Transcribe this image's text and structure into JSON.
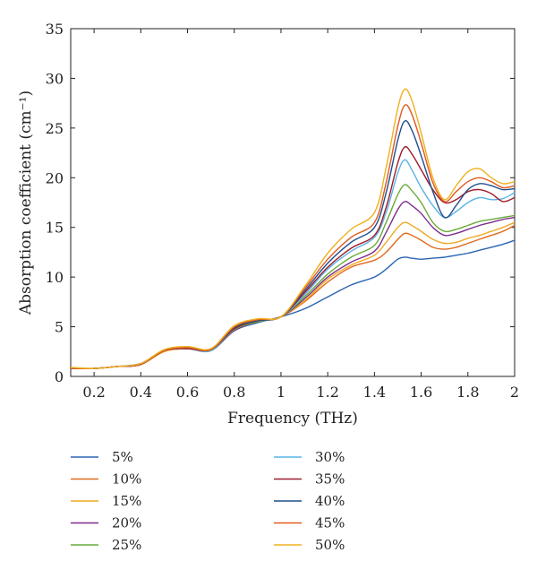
{
  "chart_data": {
    "type": "line",
    "xlabel": "Frequency (THz)",
    "ylabel": "Absorption coefficient (cm⁻¹)",
    "xlim": [
      0.1,
      2.0
    ],
    "ylim": [
      0,
      35
    ],
    "xticks": [
      0.2,
      0.4,
      0.6,
      0.8,
      1,
      1.2,
      1.4,
      1.6,
      1.8,
      2
    ],
    "xtick_labels": [
      "0.2",
      "0.4",
      "0.6",
      "0.8",
      "1",
      "1.2",
      "1.4",
      "1.6",
      "1.8",
      "2"
    ],
    "yticks": [
      0,
      5,
      10,
      15,
      20,
      25,
      30,
      35
    ],
    "ytick_labels": [
      "0",
      "5",
      "10",
      "15",
      "20",
      "25",
      "30",
      "35"
    ],
    "grid": false,
    "legend_position": "below plot, two columns",
    "x": [
      0.1,
      0.2,
      0.3,
      0.4,
      0.5,
      0.6,
      0.7,
      0.8,
      0.9,
      1.0,
      1.1,
      1.2,
      1.3,
      1.4,
      1.45,
      1.5,
      1.53,
      1.56,
      1.6,
      1.65,
      1.7,
      1.75,
      1.8,
      1.85,
      1.9,
      1.95,
      2.0
    ],
    "series": [
      {
        "name": "5%",
        "color": "#2a64b4",
        "values": [
          0.8,
          0.8,
          1.0,
          1.3,
          2.6,
          2.9,
          2.6,
          4.6,
          5.4,
          6.0,
          6.8,
          8.0,
          9.2,
          10.0,
          10.8,
          11.8,
          12.0,
          11.9,
          11.8,
          11.9,
          12.0,
          12.2,
          12.4,
          12.7,
          13.0,
          13.3,
          13.7
        ]
      },
      {
        "name": "10%",
        "color": "#e06a1c",
        "values": [
          0.8,
          0.8,
          1.0,
          1.2,
          2.5,
          2.8,
          2.6,
          4.7,
          5.5,
          6.0,
          7.5,
          9.5,
          11.0,
          11.7,
          12.5,
          13.8,
          14.4,
          14.2,
          13.7,
          13.0,
          12.8,
          13.0,
          13.4,
          13.8,
          14.2,
          14.6,
          15.2
        ]
      },
      {
        "name": "15%",
        "color": "#f0a820",
        "values": [
          0.9,
          0.8,
          1.0,
          1.2,
          2.5,
          2.8,
          2.6,
          4.7,
          5.5,
          6.0,
          7.6,
          9.8,
          11.2,
          12.2,
          13.5,
          15.0,
          15.5,
          15.2,
          14.6,
          13.8,
          13.4,
          13.5,
          13.9,
          14.2,
          14.6,
          15.0,
          15.5
        ]
      },
      {
        "name": "20%",
        "color": "#7b2e8e",
        "values": [
          0.8,
          0.8,
          1.0,
          1.2,
          2.6,
          2.8,
          2.6,
          4.6,
          5.5,
          6.0,
          7.8,
          10.0,
          11.5,
          12.6,
          14.5,
          16.8,
          17.6,
          17.2,
          16.4,
          15.0,
          14.2,
          14.4,
          14.8,
          15.2,
          15.5,
          15.8,
          16.0
        ]
      },
      {
        "name": "25%",
        "color": "#6aaa3a",
        "values": [
          0.8,
          0.8,
          1.0,
          1.2,
          2.6,
          2.8,
          2.6,
          4.7,
          5.5,
          6.0,
          8.0,
          10.3,
          12.0,
          13.2,
          15.5,
          18.3,
          19.3,
          18.7,
          17.5,
          15.5,
          14.6,
          14.8,
          15.2,
          15.6,
          15.8,
          16.0,
          16.2
        ]
      },
      {
        "name": "30%",
        "color": "#5ab4e6",
        "values": [
          0.8,
          0.8,
          1.0,
          1.2,
          2.6,
          2.8,
          2.6,
          4.8,
          5.6,
          6.0,
          8.2,
          10.8,
          12.6,
          14.0,
          16.5,
          20.5,
          21.8,
          20.8,
          19.0,
          17.2,
          16.0,
          16.6,
          17.5,
          18.0,
          17.8,
          17.9,
          18.5
        ]
      },
      {
        "name": "35%",
        "color": "#a01c2c",
        "values": [
          0.8,
          0.8,
          1.0,
          1.2,
          2.6,
          2.8,
          2.7,
          4.8,
          5.6,
          6.0,
          8.4,
          11.0,
          12.9,
          14.2,
          17.0,
          21.5,
          23.1,
          22.4,
          20.8,
          18.8,
          17.5,
          17.8,
          18.6,
          18.8,
          18.4,
          17.6,
          18.0
        ]
      },
      {
        "name": "40%",
        "color": "#1f4e8c",
        "values": [
          0.8,
          0.8,
          1.0,
          1.2,
          2.6,
          2.9,
          2.7,
          4.9,
          5.6,
          6.0,
          8.6,
          11.4,
          13.5,
          15.0,
          18.5,
          23.8,
          25.7,
          24.8,
          22.2,
          18.6,
          16.0,
          17.2,
          18.8,
          19.4,
          19.2,
          18.8,
          18.9
        ]
      },
      {
        "name": "45%",
        "color": "#e05a1c",
        "values": [
          0.8,
          0.8,
          1.0,
          1.2,
          2.6,
          2.9,
          2.7,
          5.0,
          5.7,
          6.0,
          8.8,
          11.8,
          14.0,
          15.5,
          19.5,
          25.2,
          27.3,
          26.4,
          23.5,
          19.5,
          17.6,
          18.6,
          19.6,
          20.0,
          19.6,
          19.0,
          19.2
        ]
      },
      {
        "name": "50%",
        "color": "#f0b020",
        "values": [
          0.9,
          0.8,
          1.0,
          1.3,
          2.7,
          3.0,
          2.8,
          5.1,
          5.8,
          6.0,
          9.0,
          12.4,
          14.8,
          16.5,
          21.0,
          27.0,
          28.9,
          27.8,
          24.5,
          20.0,
          17.8,
          19.2,
          20.6,
          20.9,
          20.0,
          19.4,
          19.6
        ]
      }
    ]
  }
}
